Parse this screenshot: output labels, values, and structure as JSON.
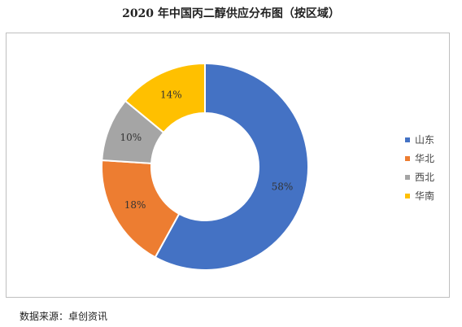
{
  "chart_data": {
    "type": "pie",
    "title": "2020 年中国丙二醇供应分布图（按区域）",
    "categories": [
      "山东",
      "华北",
      "西北",
      "华南"
    ],
    "values": [
      58,
      18,
      10,
      14
    ],
    "labels": [
      "58%",
      "18%",
      "10%",
      "14%"
    ],
    "colors": [
      "#4472C4",
      "#ED7D31",
      "#A5A5A5",
      "#FFC000"
    ],
    "donut": true,
    "legend_position": "right"
  },
  "source": "数据来源：卓创资讯"
}
